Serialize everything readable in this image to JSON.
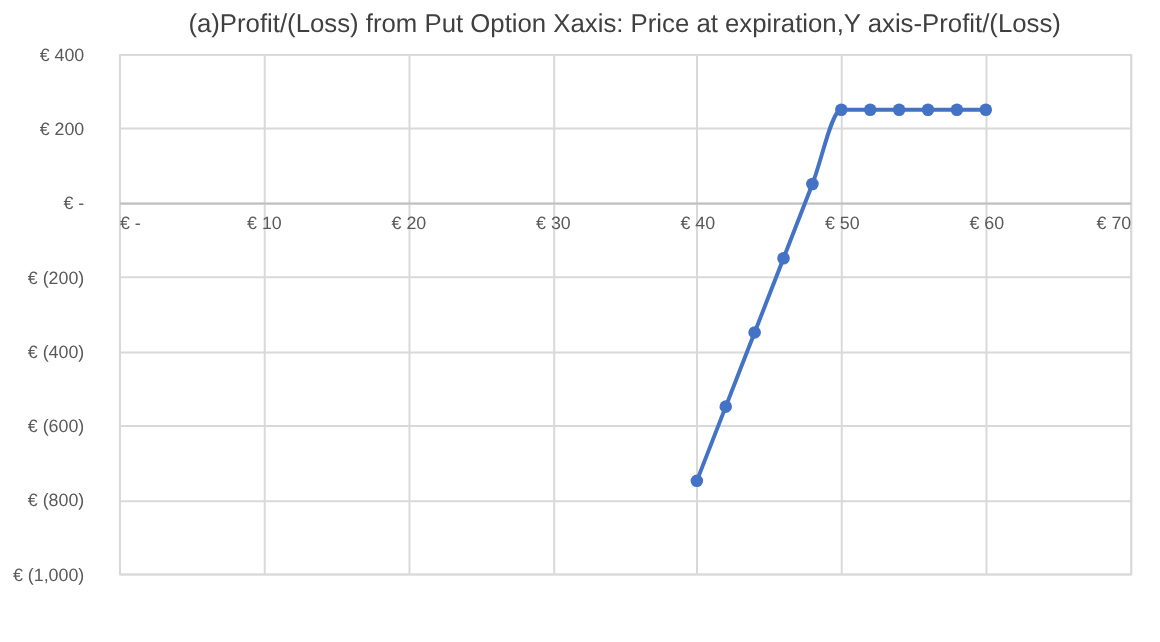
{
  "chart_data": {
    "type": "line",
    "title": "(a)Profit/(Loss) from Put Option Xaxis: Price at expiration,Y axis-Profit/(Loss)",
    "x": [
      40,
      42,
      44,
      46,
      48,
      50,
      52,
      54,
      56,
      58,
      60
    ],
    "series": [
      {
        "color": "#4472c4",
        "values": [
          -750,
          -550,
          -350,
          -150,
          50,
          250,
          250,
          250,
          250,
          250,
          250
        ]
      }
    ],
    "xlim": [
      0,
      70
    ],
    "xticks": [
      {
        "value": 0,
        "label": "€ -"
      },
      {
        "value": 10,
        "label": "€ 10"
      },
      {
        "value": 20,
        "label": "€ 20"
      },
      {
        "value": 30,
        "label": "€ 30"
      },
      {
        "value": 40,
        "label": "€ 40"
      },
      {
        "value": 50,
        "label": "€ 50"
      },
      {
        "value": 60,
        "label": "€ 60"
      },
      {
        "value": 70,
        "label": "€ 70"
      }
    ],
    "ylim": [
      -1000,
      400
    ],
    "yticks": [
      {
        "value": 400,
        "label": "€ 400"
      },
      {
        "value": 200,
        "label": "€ 200"
      },
      {
        "value": 0,
        "label": "€ -"
      },
      {
        "value": -200,
        "label": "€ (200)"
      },
      {
        "value": -400,
        "label": "€ (400)"
      },
      {
        "value": -600,
        "label": "€ (600)"
      },
      {
        "value": -800,
        "label": "€ (800)"
      },
      {
        "value": -1000,
        "label": "€ (1,000)"
      }
    ],
    "grid": true,
    "marker": "circle",
    "line_style": "solid"
  }
}
